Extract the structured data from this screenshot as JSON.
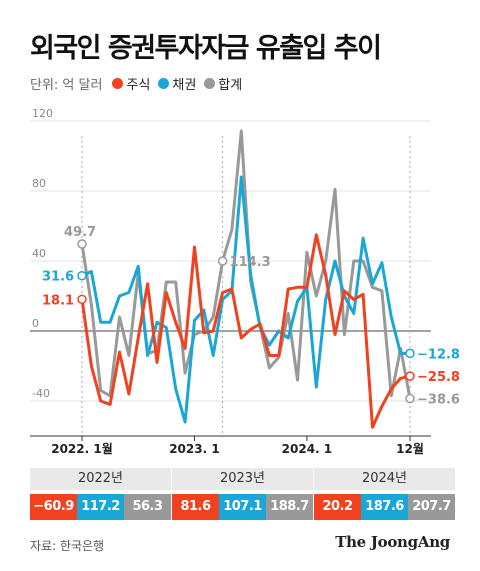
{
  "title": "외국인 증권투자자금 유출입 추이",
  "legend": {
    "unit": "단위: 억 달러",
    "items": [
      {
        "label": "주식",
        "color": "#f0421f"
      },
      {
        "label": "채권",
        "color": "#1aa6d6"
      },
      {
        "label": "합계",
        "color": "#999999"
      }
    ]
  },
  "chart_data": {
    "type": "line",
    "ylim": [
      -60,
      120
    ],
    "y_ticks": [
      120,
      80,
      40,
      0,
      -40
    ],
    "y_tick_labels": [
      "120",
      "80",
      "40",
      "0",
      "-40"
    ],
    "x_labels": [
      {
        "label": "2022. 1월",
        "index": 0
      },
      {
        "label": "2023. 1",
        "index": 12
      },
      {
        "label": "2024. 1",
        "index": 24
      },
      {
        "label": "12월",
        "index": 35
      }
    ],
    "highlights": [
      {
        "index": 0
      },
      {
        "index": 15
      },
      {
        "index": 35
      }
    ],
    "series": [
      {
        "name": "주식",
        "color": "#f0421f",
        "values": [
          18.1,
          -20,
          -40,
          -42,
          -12,
          -36,
          -4,
          27,
          -18,
          22,
          5,
          -10,
          48,
          -1,
          0,
          22,
          24,
          -4,
          1,
          4,
          -14,
          -14,
          24,
          25,
          25,
          55,
          32,
          -2,
          23,
          18,
          21,
          -55,
          -43,
          -33,
          -27,
          -25.8
        ]
      },
      {
        "name": "채권",
        "color": "#1aa6d6",
        "values": [
          31.6,
          34,
          5,
          5,
          20,
          22,
          37,
          -14,
          5,
          2,
          -33,
          -52,
          6,
          12,
          -14,
          18,
          23,
          88,
          32,
          2,
          -8,
          0,
          -4,
          17,
          25,
          -32,
          18,
          40,
          20,
          10,
          53,
          27,
          39,
          8,
          -12.8,
          -12.8
        ]
      },
      {
        "name": "합계",
        "color": "#999999",
        "values": [
          49.7,
          15,
          -34,
          -37,
          8,
          -14,
          33,
          -13,
          -11,
          28,
          28,
          -24,
          -2,
          0,
          8,
          40,
          58,
          114.3,
          28,
          3,
          -21,
          -15,
          10,
          -28,
          45,
          20,
          40,
          81,
          -2,
          40,
          40,
          25,
          23,
          -37,
          -10,
          -38.6
        ]
      }
    ],
    "end_labels": [
      {
        "text": "−12.8",
        "color": "#1aa6d6"
      },
      {
        "text": "−25.8",
        "color": "#f0421f"
      },
      {
        "text": "−38.6",
        "color": "#999999"
      }
    ],
    "start_labels": [
      {
        "text": "49.7",
        "color": "#999999"
      },
      {
        "text": "31.6",
        "color": "#1aa6d6"
      },
      {
        "text": "18.1",
        "color": "#f0421f"
      }
    ],
    "peak_label": {
      "text": "114.3",
      "color": "#999999"
    }
  },
  "summary": [
    {
      "year": "2022년",
      "values": [
        {
          "text": "−60.9",
          "color": "#f0421f"
        },
        {
          "text": "117.2",
          "color": "#1aa6d6"
        },
        {
          "text": "56.3",
          "color": "#999999"
        }
      ]
    },
    {
      "year": "2023년",
      "values": [
        {
          "text": "81.6",
          "color": "#f0421f"
        },
        {
          "text": "107.1",
          "color": "#1aa6d6"
        },
        {
          "text": "188.7",
          "color": "#999999"
        }
      ]
    },
    {
      "year": "2024년",
      "values": [
        {
          "text": "20.2",
          "color": "#f0421f"
        },
        {
          "text": "187.6",
          "color": "#1aa6d6"
        },
        {
          "text": "207.7",
          "color": "#999999"
        }
      ]
    }
  ],
  "source": "자료: 한국은행",
  "logo": "The JoongAng"
}
